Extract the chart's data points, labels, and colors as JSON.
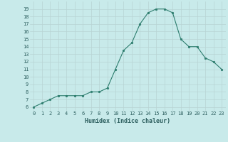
{
  "x": [
    0,
    1,
    2,
    3,
    4,
    5,
    6,
    7,
    8,
    9,
    10,
    11,
    12,
    13,
    14,
    15,
    16,
    17,
    18,
    19,
    20,
    21,
    22,
    23
  ],
  "y": [
    6,
    6.5,
    7,
    7.5,
    7.5,
    7.5,
    7.5,
    8,
    8,
    8.5,
    11,
    13.5,
    14.5,
    17.0,
    18.5,
    19.0,
    19.0,
    18.5,
    15.0,
    14.0,
    14.0,
    12.5,
    12.0,
    11.0
  ],
  "xlabel": "Humidex (Indice chaleur)",
  "xlim": [
    -0.5,
    23.5
  ],
  "ylim": [
    5.5,
    20.0
  ],
  "yticks": [
    6,
    7,
    8,
    9,
    10,
    11,
    12,
    13,
    14,
    15,
    16,
    17,
    18,
    19
  ],
  "xticks": [
    0,
    1,
    2,
    3,
    4,
    5,
    6,
    7,
    8,
    9,
    10,
    11,
    12,
    13,
    14,
    15,
    16,
    17,
    18,
    19,
    20,
    21,
    22,
    23
  ],
  "line_color": "#2d7d6e",
  "marker_color": "#2d7d6e",
  "bg_color": "#c8eaea",
  "grid_color": "#b8d4d4",
  "axis_label_color": "#2d5f5f",
  "tick_color": "#2d5f5f"
}
